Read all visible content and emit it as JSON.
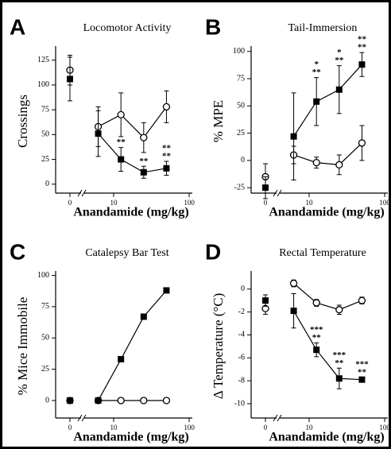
{
  "chart_data": [
    {
      "type": "line",
      "panel": "A",
      "title": "Locomotor Activity",
      "xlabel": "Anandamide (mg/kg)",
      "ylabel": "Crossings",
      "xscale": "log",
      "x": [
        6.25,
        12.5,
        25,
        50
      ],
      "xlim": [
        4.5,
        110
      ],
      "xticks": [
        10,
        100
      ],
      "control_label": "0",
      "ylim": [
        -9,
        136
      ],
      "yticks": [
        0,
        25,
        50,
        75,
        100,
        125
      ],
      "series": [
        {
          "marker": "circle",
          "color": "#000000",
          "control": 115,
          "control_error": 15,
          "values": [
            58,
            70,
            47,
            78
          ],
          "errors": [
            20,
            22,
            15,
            16
          ],
          "sig": [
            null,
            null,
            null,
            null
          ]
        },
        {
          "marker": "square",
          "color": "#000000",
          "control": 106,
          "control_error": 22,
          "values": [
            51,
            25,
            12,
            16
          ],
          "errors": [
            23,
            12,
            6,
            7
          ],
          "sig": [
            null,
            [
              "**"
            ],
            [
              "**"
            ],
            [
              "**",
              "**"
            ]
          ]
        }
      ]
    },
    {
      "type": "line",
      "panel": "B",
      "title": "Tail-Immersion",
      "xlabel": "Anandamide (mg/kg)",
      "ylabel": "% MPE",
      "xscale": "log",
      "x": [
        6.25,
        12.5,
        25,
        50
      ],
      "xlim": [
        4.5,
        110
      ],
      "xticks": [
        10,
        100
      ],
      "control_label": "0",
      "ylim": [
        -30,
        102
      ],
      "yticks": [
        -25,
        0,
        25,
        50,
        75,
        100
      ],
      "series": [
        {
          "marker": "circle",
          "color": "#000000",
          "control": -15,
          "control_error": 12,
          "values": [
            5,
            -2,
            -4,
            16
          ],
          "errors": [
            8,
            5,
            9,
            16
          ],
          "sig": [
            null,
            null,
            null,
            null
          ]
        },
        {
          "marker": "square",
          "color": "#000000",
          "control": -25,
          "control_error": 10,
          "values": [
            22,
            54,
            65,
            88
          ],
          "errors": [
            40,
            22,
            22,
            11
          ],
          "sig": [
            null,
            [
              "*",
              "**"
            ],
            [
              "*",
              "**"
            ],
            [
              "**",
              "**"
            ]
          ]
        }
      ]
    },
    {
      "type": "line",
      "panel": "C",
      "title": "Catalepsy Bar Test",
      "xlabel": "Anandamide (mg/kg)",
      "ylabel": "% Mice Immobile",
      "xscale": "log",
      "x": [
        6.25,
        12.5,
        25,
        50
      ],
      "xlim": [
        4.5,
        110
      ],
      "xticks": [
        10,
        100
      ],
      "control_label": "0",
      "ylim": [
        -14,
        101
      ],
      "yticks": [
        0,
        25,
        50,
        75,
        100
      ],
      "series": [
        {
          "marker": "circle",
          "color": "#000000",
          "control": 0,
          "control_error": null,
          "values": [
            0,
            0,
            0,
            0
          ],
          "errors": [
            null,
            null,
            null,
            null
          ],
          "sig": [
            null,
            null,
            null,
            null
          ]
        },
        {
          "marker": "square",
          "color": "#000000",
          "control": 0,
          "control_error": null,
          "values": [
            0,
            33,
            67,
            88
          ],
          "errors": [
            null,
            null,
            null,
            null
          ],
          "sig": [
            null,
            null,
            null,
            null
          ]
        }
      ]
    },
    {
      "type": "line",
      "panel": "D",
      "title": "Rectal Temperature",
      "xlabel": "Anandamide (mg/kg)",
      "ylabel": "Δ Temperature (°C)",
      "xscale": "log",
      "x": [
        6.25,
        12.5,
        25,
        50
      ],
      "xlim": [
        4.5,
        110
      ],
      "xticks": [
        10,
        100
      ],
      "control_label": "0",
      "ylim": [
        -11.25,
        1.3
      ],
      "yticks": [
        0,
        -2,
        -4,
        -6,
        -8,
        -10
      ],
      "series": [
        {
          "marker": "circle",
          "color": "#000000",
          "control": -1.7,
          "control_error": 0.5,
          "values": [
            0.5,
            -1.2,
            -1.8,
            -1.0
          ],
          "errors": [
            0.3,
            0.3,
            0.4,
            0.3
          ],
          "sig": [
            null,
            null,
            null,
            null
          ]
        },
        {
          "marker": "square",
          "color": "#000000",
          "control": -1.0,
          "control_error": 0.5,
          "values": [
            -1.9,
            -5.3,
            -7.8,
            -7.9
          ],
          "errors": [
            1.5,
            0.6,
            0.9,
            0.2
          ],
          "sig": [
            null,
            [
              "***",
              "**"
            ],
            [
              "***",
              "**"
            ],
            [
              "***",
              "**"
            ]
          ]
        }
      ]
    }
  ]
}
